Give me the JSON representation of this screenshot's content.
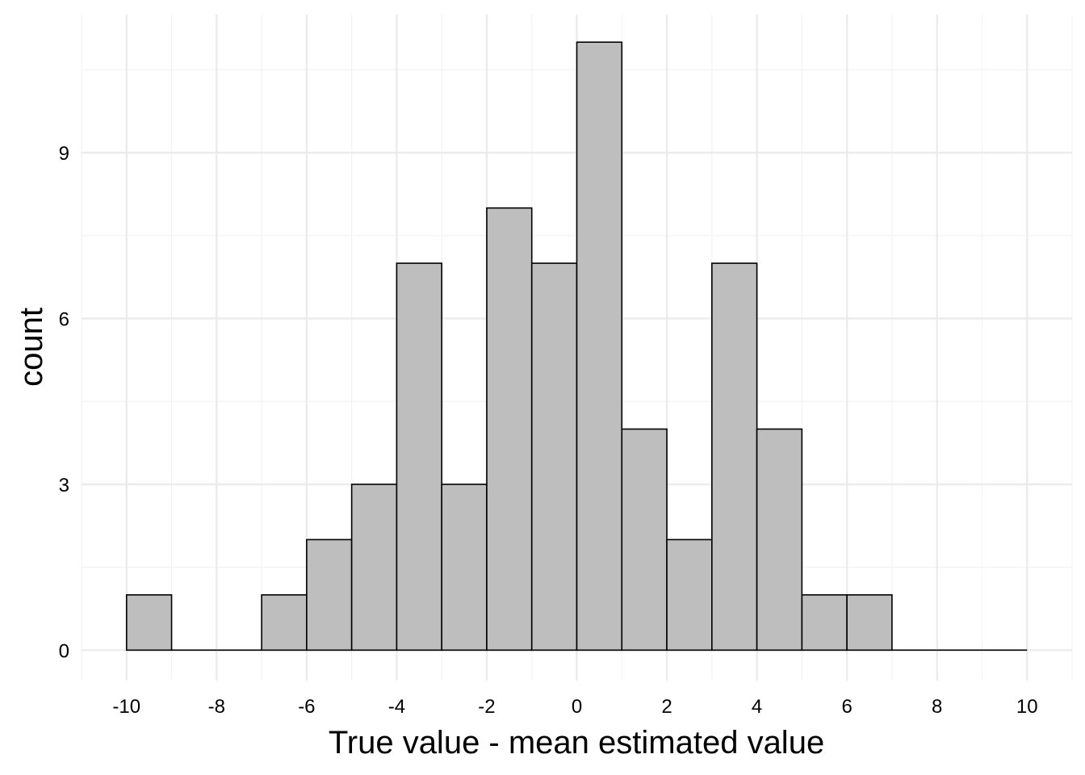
{
  "chart_data": {
    "type": "bar",
    "title": "",
    "xlabel": "True value - mean estimated value",
    "ylabel": "count",
    "xlim": [
      -11,
      11
    ],
    "ylim": [
      -0.55,
      11.5
    ],
    "grid": true,
    "legend": "none",
    "bins": [
      {
        "start": -10,
        "end": -9,
        "count": 1
      },
      {
        "start": -9,
        "end": -8,
        "count": 0
      },
      {
        "start": -8,
        "end": -7,
        "count": 0
      },
      {
        "start": -7,
        "end": -6,
        "count": 1
      },
      {
        "start": -6,
        "end": -5,
        "count": 2
      },
      {
        "start": -5,
        "end": -4,
        "count": 3
      },
      {
        "start": -4,
        "end": -3,
        "count": 7
      },
      {
        "start": -3,
        "end": -2,
        "count": 3
      },
      {
        "start": -2,
        "end": -1,
        "count": 8
      },
      {
        "start": -1,
        "end": 0,
        "count": 7
      },
      {
        "start": 0,
        "end": 1,
        "count": 11
      },
      {
        "start": 1,
        "end": 2,
        "count": 4
      },
      {
        "start": 2,
        "end": 3,
        "count": 2
      },
      {
        "start": 3,
        "end": 4,
        "count": 7
      },
      {
        "start": 4,
        "end": 5,
        "count": 4
      },
      {
        "start": 5,
        "end": 6,
        "count": 1
      },
      {
        "start": 6,
        "end": 7,
        "count": 1
      },
      {
        "start": 7,
        "end": 8,
        "count": 0
      },
      {
        "start": 8,
        "end": 9,
        "count": 0
      },
      {
        "start": 9,
        "end": 10,
        "count": 0
      }
    ],
    "x_ticks": [
      -10,
      -8,
      -6,
      -4,
      -2,
      0,
      2,
      4,
      6,
      8,
      10
    ],
    "x_tick_labels": [
      "-10",
      "-8",
      "-6",
      "-4",
      "-2",
      "0",
      "2",
      "4",
      "6",
      "8",
      "10"
    ],
    "y_ticks": [
      0,
      3,
      6,
      9
    ],
    "y_tick_labels": [
      "0",
      "3",
      "6",
      "9"
    ],
    "colors": {
      "bar_fill": "#bebebe",
      "bar_stroke": "#000000",
      "grid_major": "#ebebeb",
      "grid_minor": "#f3f3f3"
    }
  }
}
